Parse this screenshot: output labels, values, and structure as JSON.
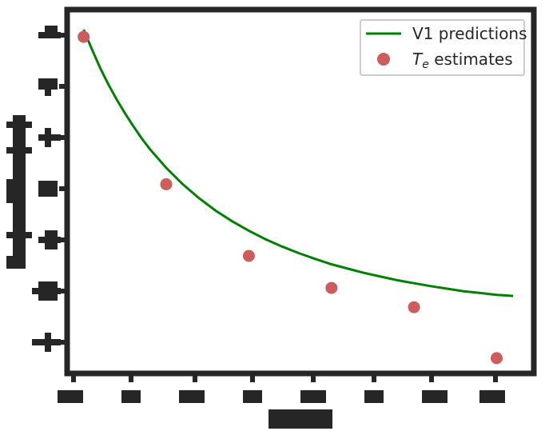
{
  "chart_data": {
    "type": "line",
    "title": "",
    "xlabel": "",
    "ylabel": "",
    "xlim": [
      0,
      5.65
    ],
    "ylim": [
      0,
      1.0
    ],
    "grid": false,
    "legend": {
      "placement": "top-right",
      "entries": [
        "V1 predictions",
        "T_e estimates"
      ]
    },
    "series": [
      {
        "name": "V1 predictions",
        "kind": "line",
        "color": "#008000",
        "x": [
          0.2,
          0.3,
          0.4,
          0.5,
          0.6,
          0.7,
          0.8,
          0.9,
          1.0,
          1.2,
          1.4,
          1.6,
          1.8,
          2.0,
          2.2,
          2.4,
          2.6,
          2.8,
          3.0,
          3.2,
          3.4,
          3.6,
          3.8,
          4.0,
          4.2,
          4.4,
          4.6,
          4.8,
          5.0,
          5.2,
          5.4
        ],
        "y": [
          0.945,
          0.891,
          0.84,
          0.794,
          0.753,
          0.715,
          0.68,
          0.647,
          0.617,
          0.565,
          0.52,
          0.481,
          0.447,
          0.418,
          0.392,
          0.369,
          0.349,
          0.331,
          0.315,
          0.3,
          0.288,
          0.276,
          0.266,
          0.256,
          0.248,
          0.24,
          0.233,
          0.226,
          0.221,
          0.216,
          0.213
        ]
      },
      {
        "name": "T_e estimates",
        "kind": "scatter",
        "color": "#cd5c5c",
        "x": [
          0.2,
          1.2,
          2.2,
          3.2,
          4.2,
          5.2
        ],
        "y": [
          0.925,
          0.52,
          0.323,
          0.235,
          0.182,
          0.042
        ]
      }
    ]
  }
}
